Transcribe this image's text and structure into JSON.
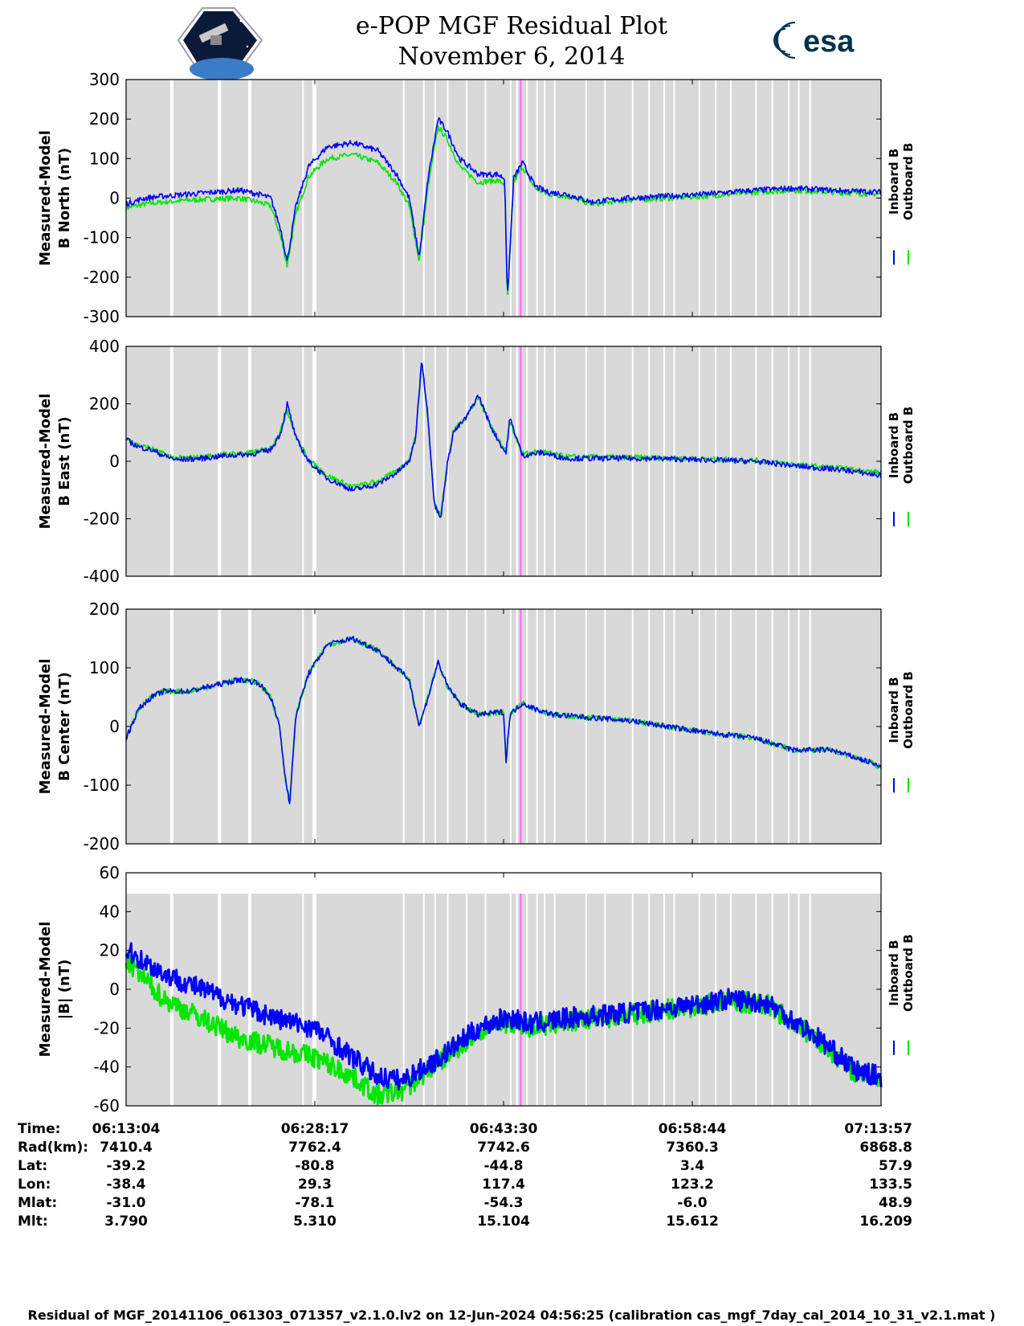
{
  "header": {
    "title_line1": "e-POP MGF Residual Plot",
    "title_line2": "November 6, 2014",
    "left_logo": "cassiope-satellite-logo",
    "right_logo_text": "esa"
  },
  "colors": {
    "inboard": "#0000ff",
    "outboard": "#00e600",
    "data_gap_bg": "#d9d9d9",
    "marker": "#ff66ff"
  },
  "chart_data": [
    {
      "type": "line",
      "ylabel": "Measured-Model",
      "ylabel2": "B North (nT)",
      "ylim": [
        -300,
        300
      ],
      "yticks": [
        "300",
        "200",
        "100",
        "0",
        "-100",
        "-200",
        "-300"
      ],
      "legend": [
        "Inboard B",
        "Outboard B"
      ],
      "x": [
        0,
        1.5,
        3,
        5,
        7,
        9,
        10.5,
        11.5,
        12.3,
        12.8,
        13.5,
        14.5,
        16,
        18,
        20,
        21.5,
        22.5,
        23.3,
        24,
        24.8,
        25.5,
        26.5,
        28,
        29.5,
        30.1,
        30.3,
        30.8,
        31.5,
        32.5,
        33.5,
        35,
        37,
        40,
        43,
        46,
        50,
        53,
        56,
        60
      ],
      "series": [
        {
          "name": "Inboard B",
          "values": [
            -15,
            0,
            5,
            10,
            15,
            20,
            10,
            0,
            -80,
            -160,
            -20,
            80,
            130,
            140,
            120,
            60,
            0,
            -150,
            50,
            200,
            170,
            100,
            60,
            60,
            50,
            -260,
            50,
            90,
            30,
            15,
            10,
            -10,
            0,
            5,
            10,
            20,
            25,
            20,
            15
          ]
        },
        {
          "name": "Outboard B",
          "values": [
            -25,
            -15,
            -10,
            -5,
            -2,
            0,
            -10,
            -20,
            -100,
            -170,
            -40,
            55,
            100,
            110,
            90,
            40,
            -20,
            -160,
            30,
            180,
            150,
            80,
            40,
            45,
            35,
            -270,
            40,
            80,
            25,
            10,
            5,
            -15,
            -5,
            0,
            5,
            15,
            20,
            15,
            10
          ]
        }
      ]
    },
    {
      "type": "line",
      "ylabel": "Measured-Model",
      "ylabel2": "B East (nT)",
      "ylim": [
        -400,
        400
      ],
      "yticks": [
        "400",
        "200",
        "0",
        "-200",
        "-400"
      ],
      "legend": [
        "Inboard B",
        "Outboard B"
      ],
      "x": [
        0,
        1,
        2,
        3,
        4,
        6,
        8,
        10,
        11.5,
        12.3,
        12.8,
        13.5,
        14.5,
        16,
        18,
        20,
        21.5,
        22.5,
        23,
        23.5,
        24,
        24.5,
        25,
        25.5,
        26,
        27,
        28,
        29,
        30,
        30.2,
        30.5,
        31.5,
        33,
        35,
        38,
        42,
        46,
        50,
        54,
        57,
        60
      ],
      "series": [
        {
          "name": "Inboard B",
          "values": [
            75,
            50,
            40,
            20,
            5,
            10,
            20,
            25,
            40,
            100,
            200,
            80,
            0,
            -60,
            -100,
            -80,
            -40,
            0,
            80,
            360,
            150,
            -150,
            -200,
            -20,
            100,
            150,
            230,
            120,
            40,
            30,
            150,
            20,
            30,
            10,
            10,
            10,
            5,
            0,
            -20,
            -30,
            -50
          ]
        },
        {
          "name": "Outboard B",
          "values": [
            80,
            55,
            45,
            25,
            10,
            15,
            25,
            30,
            45,
            110,
            180,
            85,
            5,
            -50,
            -90,
            -70,
            -35,
            5,
            85,
            340,
            140,
            -140,
            -190,
            -15,
            105,
            155,
            220,
            125,
            45,
            35,
            140,
            25,
            35,
            15,
            15,
            12,
            8,
            3,
            -15,
            -25,
            -40
          ]
        }
      ]
    },
    {
      "type": "line",
      "ylabel": "Measured-Model",
      "ylabel2": "B Center (nT)",
      "ylim": [
        -200,
        200
      ],
      "yticks": [
        "200",
        "100",
        "0",
        "-100",
        "-200"
      ],
      "legend": [
        "Inboard B",
        "Outboard B"
      ],
      "x": [
        0,
        1,
        2,
        3,
        5,
        7,
        9,
        10.5,
        11.5,
        12.2,
        12.6,
        13,
        13.5,
        14.5,
        16,
        18,
        20,
        21.5,
        22.5,
        23.3,
        24,
        24.8,
        25.5,
        26.5,
        28,
        30,
        30.2,
        30.5,
        31.5,
        32.5,
        34,
        37,
        40,
        43,
        46,
        50,
        53,
        56,
        59,
        60
      ],
      "series": [
        {
          "name": "Inboard B",
          "values": [
            -20,
            30,
            50,
            60,
            60,
            70,
            80,
            75,
            50,
            0,
            -80,
            -130,
            20,
            90,
            140,
            150,
            130,
            100,
            80,
            0,
            50,
            110,
            70,
            40,
            20,
            25,
            -60,
            20,
            40,
            30,
            20,
            15,
            10,
            0,
            -10,
            -20,
            -40,
            -40,
            -60,
            -70
          ]
        },
        {
          "name": "Outboard B",
          "values": [
            -20,
            30,
            50,
            60,
            60,
            70,
            80,
            75,
            50,
            0,
            -80,
            -130,
            20,
            90,
            140,
            150,
            130,
            100,
            80,
            0,
            50,
            110,
            70,
            40,
            20,
            25,
            -60,
            20,
            40,
            30,
            20,
            15,
            10,
            0,
            -10,
            -20,
            -40,
            -40,
            -60,
            -70
          ]
        }
      ]
    },
    {
      "type": "line",
      "ylabel": "Measured-Model",
      "ylabel2": "|B| (nT)",
      "ylim": [
        -60,
        60
      ],
      "yticks": [
        "60",
        "40",
        "20",
        "0",
        "-20",
        "-40",
        "-60"
      ],
      "legend": [
        "Inboard B",
        "Outboard B"
      ],
      "x": [
        0,
        3,
        6,
        9,
        12,
        15,
        18,
        20,
        22,
        25,
        28,
        30,
        31,
        32,
        35,
        40,
        45,
        48,
        51,
        55,
        58,
        60
      ],
      "series": [
        {
          "name": "Inboard B",
          "values": [
            20,
            8,
            0,
            -8,
            -15,
            -20,
            -35,
            -45,
            -47,
            -35,
            -20,
            -15,
            -15,
            -18,
            -15,
            -12,
            -8,
            -5,
            -7,
            -25,
            -42,
            -45
          ]
        },
        {
          "name": "Outboard B",
          "values": [
            15,
            -5,
            -15,
            -25,
            -30,
            -35,
            -45,
            -55,
            -52,
            -37,
            -22,
            -17,
            -17,
            -20,
            -17,
            -13,
            -9,
            -6,
            -8,
            -26,
            -43,
            -46
          ]
        }
      ]
    }
  ],
  "x_axis": {
    "ticks": [
      "06:13:04",
      "06:28:17",
      "06:43:30",
      "06:58:44",
      "07:13:57"
    ]
  },
  "ephemeris": {
    "row_labels": [
      "Time:",
      "Rad(km):",
      "Lat:",
      "Lon:",
      "Mlat:",
      "Mlt:"
    ],
    "columns": [
      [
        "06:13:04",
        "7410.4",
        "-39.2",
        "-38.4",
        "-31.0",
        "3.790"
      ],
      [
        "06:28:17",
        "7762.4",
        "-80.8",
        "29.3",
        "-78.1",
        "5.310"
      ],
      [
        "06:43:30",
        "7742.6",
        "-44.8",
        "117.4",
        "-54.3",
        "15.104"
      ],
      [
        "06:58:44",
        "7360.3",
        "3.4",
        "123.2",
        "-6.0",
        "15.612"
      ],
      [
        "07:13:57",
        "6868.8",
        "57.9",
        "133.5",
        "48.9",
        "16.209"
      ]
    ]
  },
  "footer": "Residual of MGF_20141106_061303_071357_v2.1.0.lv2 on 12-Jun-2024 04:56:25 (calibration cas_mgf_7day_cal_2014_10_31_v2.1.mat )"
}
